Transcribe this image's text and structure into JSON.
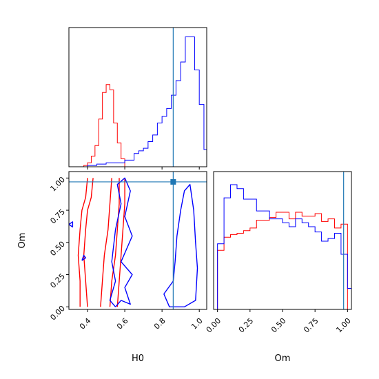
{
  "colors": {
    "series_a": "#ff0000",
    "series_b": "#0000ff",
    "truth": "#1f77b4"
  },
  "truth": {
    "H0": 0.86,
    "Om": 0.97
  },
  "chart_data": [
    {
      "type": "histogram",
      "panel": "H0 marginal",
      "xlim": [
        0.3,
        1.04
      ],
      "ylim": [
        0,
        1.05
      ],
      "series": [
        {
          "color": "red",
          "edges": [
            0.38,
            0.4,
            0.42,
            0.44,
            0.46,
            0.48,
            0.5,
            0.52,
            0.54,
            0.56,
            0.58,
            0.6
          ],
          "values": [
            0.01,
            0.03,
            0.08,
            0.16,
            0.36,
            0.56,
            0.62,
            0.58,
            0.33,
            0.18,
            0.06
          ]
        },
        {
          "color": "blue",
          "edges": [
            0.4,
            0.45,
            0.5,
            0.55,
            0.6,
            0.65,
            0.675,
            0.7,
            0.725,
            0.75,
            0.775,
            0.8,
            0.825,
            0.85,
            0.875,
            0.9,
            0.925,
            0.95,
            0.975,
            1.0,
            1.025,
            1.04
          ],
          "values": [
            0.01,
            0.02,
            0.03,
            0.03,
            0.05,
            0.1,
            0.12,
            0.14,
            0.19,
            0.24,
            0.33,
            0.38,
            0.44,
            0.54,
            0.65,
            0.79,
            0.98,
            0.98,
            0.73,
            0.47,
            0.13
          ]
        }
      ],
      "ticks": [
        0.4,
        0.6,
        0.8,
        1.0
      ]
    },
    {
      "type": "contour",
      "panel": "H0 vs Om",
      "xlim": [
        0.3,
        1.04
      ],
      "ylim": [
        -0.02,
        1.05
      ],
      "xlabel": "H0",
      "ylabel": "Om",
      "xticks": [
        "0.4",
        "0.6",
        "0.8",
        "1.0"
      ],
      "yticks": [
        "0.00",
        "0.25",
        "0.50",
        "0.75",
        "1.00"
      ],
      "contours": [
        {
          "color": "red",
          "points": [
            [
              0.36,
              0.0
            ],
            [
              0.36,
              0.2
            ],
            [
              0.35,
              0.4
            ],
            [
              0.36,
              0.6
            ],
            [
              0.37,
              0.75
            ],
            [
              0.39,
              0.85
            ],
            [
              0.4,
              1.0
            ]
          ]
        },
        {
          "color": "red",
          "points": [
            [
              0.4,
              0.0
            ],
            [
              0.39,
              0.2
            ],
            [
              0.38,
              0.4
            ],
            [
              0.39,
              0.6
            ],
            [
              0.4,
              0.75
            ],
            [
              0.42,
              0.85
            ],
            [
              0.43,
              1.0
            ]
          ]
        },
        {
          "color": "red",
          "points": [
            [
              0.47,
              0.0
            ],
            [
              0.48,
              0.2
            ],
            [
              0.49,
              0.4
            ],
            [
              0.51,
              0.6
            ],
            [
              0.52,
              0.8
            ],
            [
              0.53,
              1.0
            ]
          ]
        },
        {
          "color": "red",
          "points": [
            [
              0.52,
              0.0
            ],
            [
              0.53,
              0.2
            ],
            [
              0.55,
              0.4
            ],
            [
              0.56,
              0.6
            ],
            [
              0.57,
              0.8
            ],
            [
              0.57,
              1.0
            ]
          ]
        },
        {
          "color": "red",
          "points": [
            [
              0.56,
              0.0
            ],
            [
              0.57,
              0.2
            ],
            [
              0.58,
              0.4
            ],
            [
              0.59,
              0.6
            ],
            [
              0.6,
              0.8
            ],
            [
              0.6,
              1.0
            ]
          ]
        },
        {
          "color": "blue",
          "points": [
            [
              0.55,
              0.0
            ],
            [
              0.58,
              0.05
            ],
            [
              0.63,
              0.02
            ],
            [
              0.6,
              0.15
            ],
            [
              0.64,
              0.25
            ],
            [
              0.58,
              0.35
            ],
            [
              0.64,
              0.55
            ],
            [
              0.6,
              0.7
            ],
            [
              0.63,
              0.9
            ],
            [
              0.6,
              1.0
            ],
            [
              0.56,
              0.95
            ],
            [
              0.58,
              0.8
            ],
            [
              0.55,
              0.6
            ],
            [
              0.53,
              0.35
            ],
            [
              0.55,
              0.2
            ],
            [
              0.52,
              0.05
            ],
            [
              0.55,
              0.0
            ]
          ]
        },
        {
          "color": "blue",
          "points": [
            [
              0.81,
              0.1
            ],
            [
              0.84,
              0.0
            ],
            [
              0.92,
              0.0
            ],
            [
              0.98,
              0.05
            ],
            [
              0.99,
              0.3
            ],
            [
              0.98,
              0.5
            ],
            [
              0.97,
              0.75
            ],
            [
              0.95,
              0.95
            ],
            [
              0.92,
              0.9
            ],
            [
              0.9,
              0.75
            ],
            [
              0.88,
              0.55
            ],
            [
              0.87,
              0.35
            ],
            [
              0.86,
              0.2
            ],
            [
              0.81,
              0.1
            ]
          ]
        },
        {
          "color": "blue",
          "points": [
            [
              0.3,
              0.64
            ],
            [
              0.32,
              0.66
            ],
            [
              0.32,
              0.62
            ],
            [
              0.3,
              0.64
            ]
          ]
        },
        {
          "color": "blue",
          "points": [
            [
              0.37,
              0.36
            ],
            [
              0.39,
              0.38
            ],
            [
              0.38,
              0.4
            ],
            [
              0.37,
              0.36
            ]
          ]
        }
      ]
    },
    {
      "type": "histogram",
      "panel": "Om marginal",
      "xlim": [
        -0.03,
        1.03
      ],
      "ylim": [
        0,
        1.05
      ],
      "xlabel": "Om",
      "xticks": [
        "0.00",
        "0.25",
        "0.50",
        "0.75",
        "1.00"
      ],
      "series": [
        {
          "color": "red",
          "edges": [
            0.0,
            0.05,
            0.1,
            0.15,
            0.2,
            0.25,
            0.3,
            0.35,
            0.4,
            0.45,
            0.5,
            0.55,
            0.6,
            0.65,
            0.7,
            0.75,
            0.8,
            0.85,
            0.9,
            0.95,
            1.0
          ],
          "values": [
            0.45,
            0.55,
            0.57,
            0.58,
            0.6,
            0.62,
            0.68,
            0.68,
            0.7,
            0.74,
            0.74,
            0.69,
            0.74,
            0.71,
            0.71,
            0.73,
            0.67,
            0.69,
            0.62,
            0.65
          ]
        },
        {
          "color": "blue",
          "edges": [
            0.0,
            0.05,
            0.1,
            0.15,
            0.2,
            0.25,
            0.3,
            0.35,
            0.4,
            0.45,
            0.5,
            0.55,
            0.6,
            0.65,
            0.7,
            0.75,
            0.8,
            0.85,
            0.9,
            0.95,
            1.0,
            1.03
          ],
          "values": [
            0.5,
            0.85,
            0.95,
            0.92,
            0.84,
            0.84,
            0.75,
            0.75,
            0.69,
            0.69,
            0.66,
            0.63,
            0.69,
            0.66,
            0.63,
            0.59,
            0.52,
            0.54,
            0.58,
            0.42,
            0.16
          ]
        }
      ]
    }
  ]
}
